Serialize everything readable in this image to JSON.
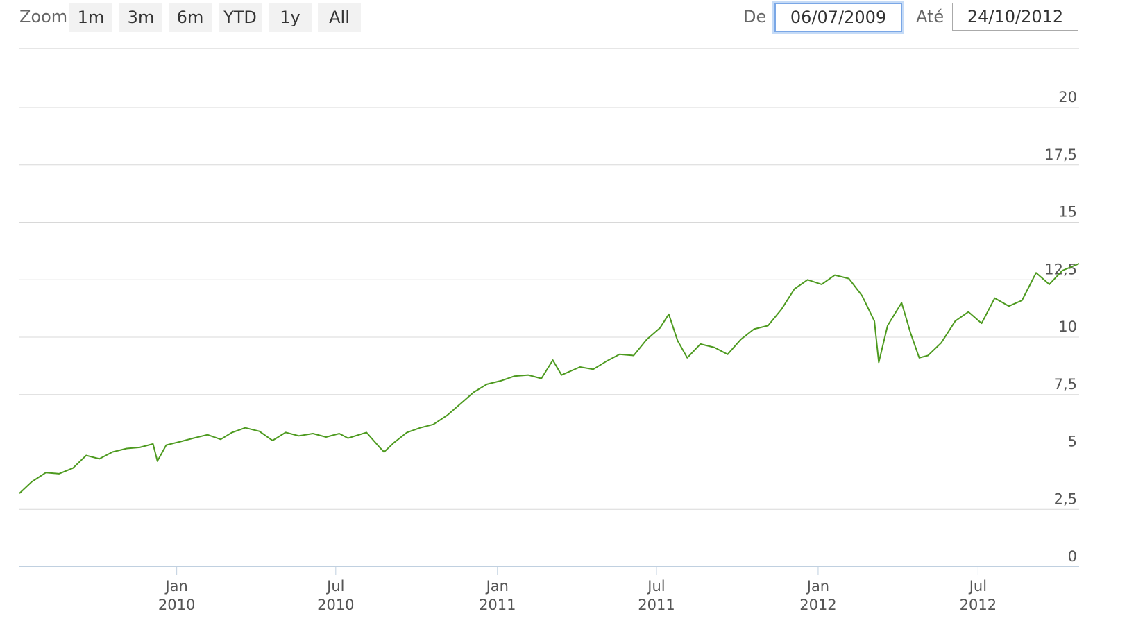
{
  "toolbar": {
    "zoom_label": "Zoom",
    "zoom_buttons": [
      "1m",
      "3m",
      "6m",
      "YTD",
      "1y",
      "All"
    ],
    "from_label": "De",
    "from_value": "06/07/2009",
    "to_label": "Até",
    "to_value": "24/10/2012"
  },
  "chart_data": {
    "type": "line",
    "title": "",
    "xlabel": "",
    "ylabel": "",
    "ylim": [
      0,
      20
    ],
    "yticks": [
      0,
      2.5,
      5,
      7.5,
      10,
      12.5,
      15,
      17.5,
      20
    ],
    "ytick_labels": [
      "0",
      "2,5",
      "5",
      "7,5",
      "10",
      "12,5",
      "15",
      "17,5",
      "20"
    ],
    "xlim": [
      "2009-07-06",
      "2012-10-24"
    ],
    "xticks": [
      {
        "date": "2010-01-01",
        "month": "Jan",
        "year": "2010"
      },
      {
        "date": "2010-07-01",
        "month": "Jul",
        "year": "2010"
      },
      {
        "date": "2011-01-01",
        "month": "Jan",
        "year": "2011"
      },
      {
        "date": "2011-07-01",
        "month": "Jul",
        "year": "2011"
      },
      {
        "date": "2012-01-01",
        "month": "Jan",
        "year": "2012"
      },
      {
        "date": "2012-07-01",
        "month": "Jul",
        "year": "2012"
      }
    ],
    "grid": true,
    "legend": "none",
    "line_color": "#4d9a1f",
    "series": [
      {
        "points": [
          [
            "2009-07-06",
            3.2
          ],
          [
            "2009-07-20",
            3.7
          ],
          [
            "2009-08-05",
            4.1
          ],
          [
            "2009-08-20",
            4.05
          ],
          [
            "2009-09-05",
            4.3
          ],
          [
            "2009-09-20",
            4.85
          ],
          [
            "2009-10-05",
            4.7
          ],
          [
            "2009-10-20",
            5.0
          ],
          [
            "2009-11-05",
            5.15
          ],
          [
            "2009-11-20",
            5.2
          ],
          [
            "2009-12-05",
            5.35
          ],
          [
            "2009-12-10",
            4.6
          ],
          [
            "2009-12-20",
            5.3
          ],
          [
            "2010-01-05",
            5.45
          ],
          [
            "2010-01-20",
            5.6
          ],
          [
            "2010-02-05",
            5.75
          ],
          [
            "2010-02-20",
            5.55
          ],
          [
            "2010-03-05",
            5.85
          ],
          [
            "2010-03-20",
            6.05
          ],
          [
            "2010-04-05",
            5.9
          ],
          [
            "2010-04-20",
            5.5
          ],
          [
            "2010-05-05",
            5.85
          ],
          [
            "2010-05-20",
            5.7
          ],
          [
            "2010-06-05",
            5.8
          ],
          [
            "2010-06-20",
            5.65
          ],
          [
            "2010-07-05",
            5.8
          ],
          [
            "2010-07-15",
            5.6
          ],
          [
            "2010-08-05",
            5.85
          ],
          [
            "2010-08-20",
            5.2
          ],
          [
            "2010-08-25",
            5.0
          ],
          [
            "2010-09-05",
            5.4
          ],
          [
            "2010-09-20",
            5.85
          ],
          [
            "2010-10-05",
            6.05
          ],
          [
            "2010-10-20",
            6.2
          ],
          [
            "2010-11-05",
            6.6
          ],
          [
            "2010-11-20",
            7.1
          ],
          [
            "2010-12-05",
            7.6
          ],
          [
            "2010-12-20",
            7.95
          ],
          [
            "2011-01-05",
            8.1
          ],
          [
            "2011-01-20",
            8.3
          ],
          [
            "2011-02-05",
            8.35
          ],
          [
            "2011-02-20",
            8.2
          ],
          [
            "2011-03-05",
            9.0
          ],
          [
            "2011-03-15",
            8.35
          ],
          [
            "2011-04-05",
            8.7
          ],
          [
            "2011-04-20",
            8.6
          ],
          [
            "2011-05-05",
            8.95
          ],
          [
            "2011-05-20",
            9.25
          ],
          [
            "2011-06-05",
            9.2
          ],
          [
            "2011-06-20",
            9.9
          ],
          [
            "2011-07-05",
            10.4
          ],
          [
            "2011-07-15",
            11.0
          ],
          [
            "2011-07-25",
            9.85
          ],
          [
            "2011-08-05",
            9.1
          ],
          [
            "2011-08-20",
            9.7
          ],
          [
            "2011-09-05",
            9.55
          ],
          [
            "2011-09-20",
            9.25
          ],
          [
            "2011-10-05",
            9.9
          ],
          [
            "2011-10-20",
            10.35
          ],
          [
            "2011-11-05",
            10.5
          ],
          [
            "2011-11-20",
            11.2
          ],
          [
            "2011-12-05",
            12.1
          ],
          [
            "2011-12-20",
            12.5
          ],
          [
            "2012-01-05",
            12.3
          ],
          [
            "2012-01-20",
            12.7
          ],
          [
            "2012-02-05",
            12.55
          ],
          [
            "2012-02-20",
            11.8
          ],
          [
            "2012-03-05",
            10.7
          ],
          [
            "2012-03-10",
            8.9
          ],
          [
            "2012-03-20",
            10.5
          ],
          [
            "2012-04-05",
            11.5
          ],
          [
            "2012-04-15",
            10.2
          ],
          [
            "2012-04-25",
            9.1
          ],
          [
            "2012-05-05",
            9.2
          ],
          [
            "2012-05-20",
            9.75
          ],
          [
            "2012-06-05",
            10.7
          ],
          [
            "2012-06-20",
            11.1
          ],
          [
            "2012-07-05",
            10.6
          ],
          [
            "2012-07-20",
            11.7
          ],
          [
            "2012-08-05",
            11.35
          ],
          [
            "2012-08-20",
            11.6
          ],
          [
            "2012-09-05",
            12.8
          ],
          [
            "2012-09-20",
            12.3
          ],
          [
            "2012-10-05",
            12.9
          ],
          [
            "2012-10-24",
            13.2
          ]
        ]
      }
    ]
  }
}
